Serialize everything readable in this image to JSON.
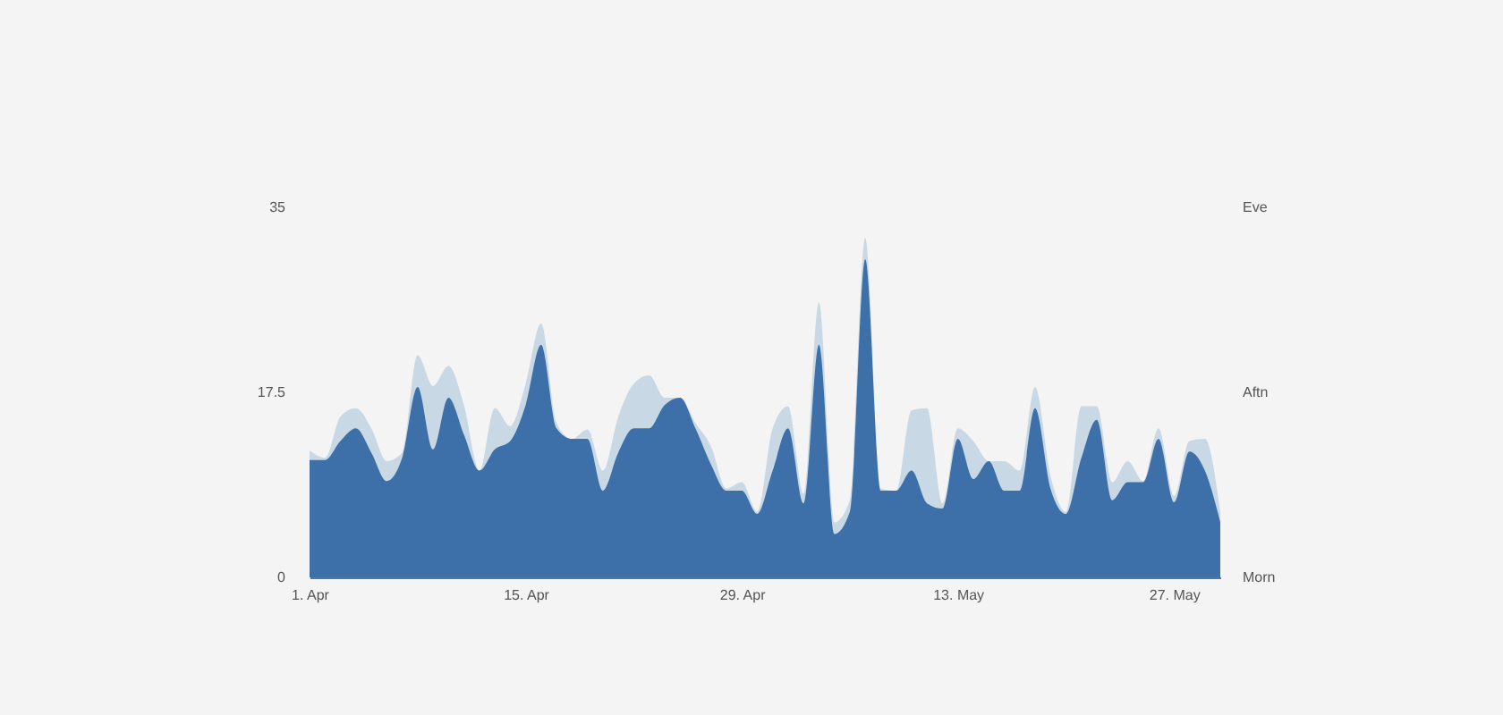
{
  "chart_data": {
    "type": "area",
    "x": [
      "--04-01",
      "--04-02",
      "--04-03",
      "--04-04",
      "--04-05",
      "--04-06",
      "--04-07",
      "--04-08",
      "--04-09",
      "--04-10",
      "--04-11",
      "--04-12",
      "--04-13",
      "--04-14",
      "--04-15",
      "--04-16",
      "--04-17",
      "--04-18",
      "--04-19",
      "--04-20",
      "--04-21",
      "--04-22",
      "--04-23",
      "--04-24",
      "--04-25",
      "--04-26",
      "--04-27",
      "--04-28",
      "--04-29",
      "--04-30",
      "--05-01",
      "--05-02",
      "--05-03",
      "--05-04",
      "--05-05",
      "--05-06",
      "--05-07",
      "--05-08",
      "--05-09",
      "--05-10",
      "--05-11",
      "--05-12",
      "--05-13",
      "--05-14",
      "--05-15",
      "--05-16",
      "--05-17",
      "--05-18",
      "--05-19",
      "--05-20",
      "--05-21",
      "--05-22",
      "--05-23",
      "--05-24",
      "--05-25",
      "--05-26",
      "--05-27",
      "--05-28",
      "--05-29",
      "--05-30"
    ],
    "series": [
      {
        "color": "#c8d8e4",
        "values": [
          12.0,
          11.3,
          15.2,
          16.0,
          14.1,
          11.0,
          11.8,
          21.0,
          18.1,
          20.0,
          16.3,
          10.1,
          16.0,
          14.3,
          18.3,
          24.0,
          14.6,
          13.1,
          14.0,
          10.1,
          15.2,
          18.3,
          19.1,
          17.0,
          17.0,
          14.6,
          12.4,
          8.4,
          9.0,
          6.2,
          14.1,
          16.2,
          7.9,
          26.0,
          5.2,
          7.3,
          32.1,
          8.4,
          8.2,
          15.8,
          16.0,
          7.0,
          14.1,
          12.9,
          11.0,
          11.0,
          10.1,
          18.0,
          9.6,
          6.2,
          16.2,
          16.2,
          9.0,
          11.0,
          9.1,
          14.1,
          7.7,
          12.9,
          13.1,
          6.2
        ]
      },
      {
        "color": "#3d6fa8",
        "values": [
          11.1,
          11.1,
          12.9,
          14.1,
          11.8,
          9.1,
          11.3,
          18.0,
          12.1,
          17.0,
          13.5,
          10.1,
          12.1,
          12.9,
          16.3,
          22.0,
          14.1,
          13.1,
          13.1,
          8.2,
          11.8,
          14.1,
          14.1,
          16.3,
          17.0,
          14.1,
          10.7,
          8.2,
          8.2,
          6.0,
          10.1,
          14.1,
          7.0,
          22.0,
          4.1,
          6.2,
          30.1,
          8.2,
          8.2,
          10.1,
          7.0,
          6.5,
          13.1,
          9.3,
          11.0,
          8.2,
          8.2,
          16.0,
          8.4,
          6.0,
          11.3,
          14.9,
          7.3,
          9.0,
          9.0,
          13.1,
          7.1,
          11.9,
          10.1,
          5.2
        ]
      }
    ],
    "xlim": [
      "--04-01",
      "--05-30"
    ],
    "xticks": [
      {
        "value": "--04-01",
        "label": "1. Apr"
      },
      {
        "value": "--04-15",
        "label": "15. Apr"
      },
      {
        "value": "--04-29",
        "label": "29. Apr"
      },
      {
        "value": "--05-13",
        "label": "13. May"
      },
      {
        "value": "--05-27",
        "label": "27. May"
      }
    ],
    "ylim": [
      0,
      35
    ],
    "yticks": [
      0,
      17.5,
      35
    ],
    "y2_categories": [
      "Eve",
      "Aftn",
      "Morn"
    ],
    "grid": false,
    "legend": false
  }
}
